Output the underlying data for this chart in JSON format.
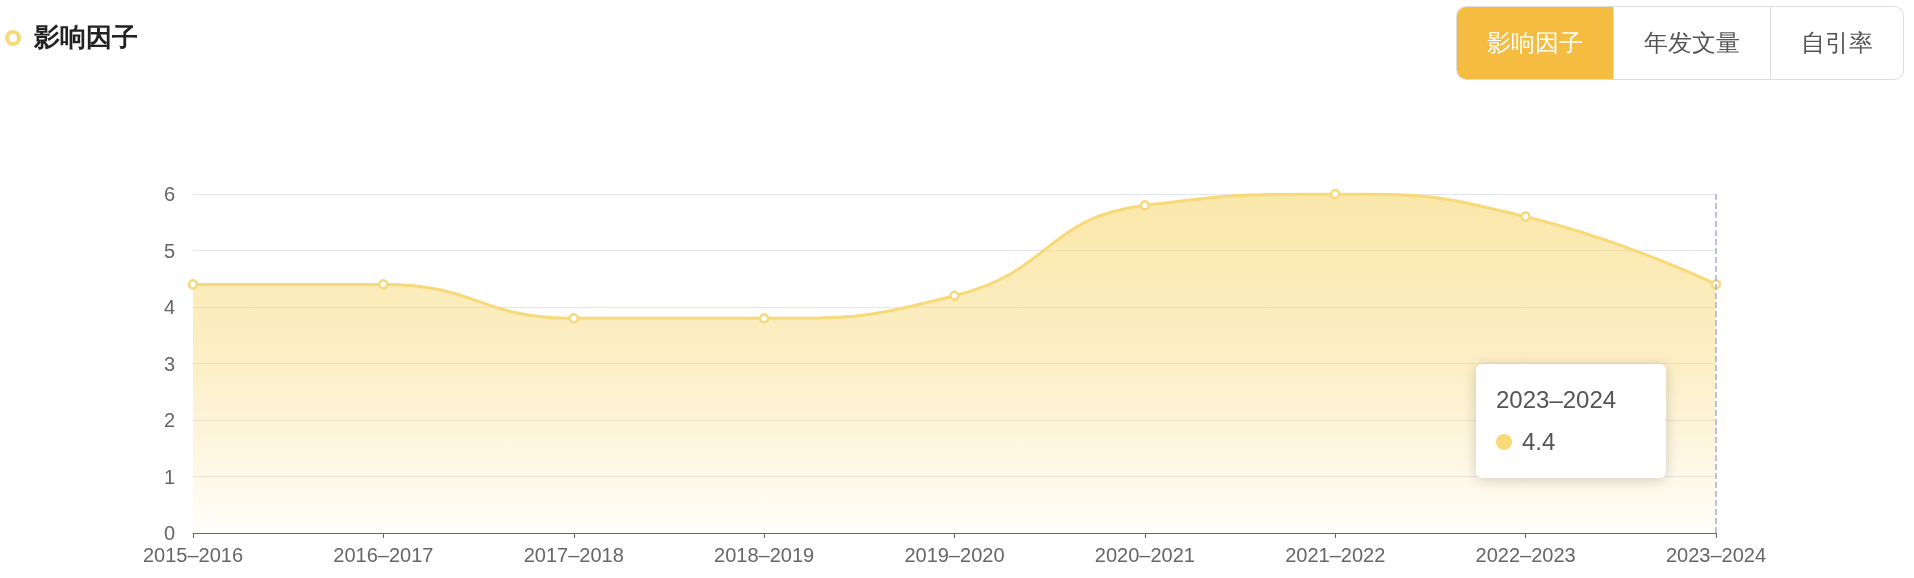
{
  "chart_data": {
    "type": "area",
    "title": "影响因子",
    "categories": [
      "2015–2016",
      "2016–2017",
      "2017–2018",
      "2018–2019",
      "2019–2020",
      "2020–2021",
      "2021–2022",
      "2022–2023",
      "2023–2024"
    ],
    "values": [
      4.4,
      4.4,
      3.8,
      3.8,
      4.2,
      5.8,
      6.0,
      5.6,
      4.4
    ],
    "color": "#f8d978",
    "ylim": [
      0,
      6
    ],
    "yticks": [
      0,
      1,
      2,
      3,
      4,
      5,
      6
    ],
    "grid": "y",
    "marker": "circle",
    "ref_lines": [
      {
        "axis": "x",
        "value": "2023–2024",
        "color": "#a9aecb",
        "line_style": "dashed"
      }
    ],
    "annotations": [
      "影响因子",
      "年发文量",
      "自引率",
      "2023–2024",
      "4.4"
    ]
  }
}
